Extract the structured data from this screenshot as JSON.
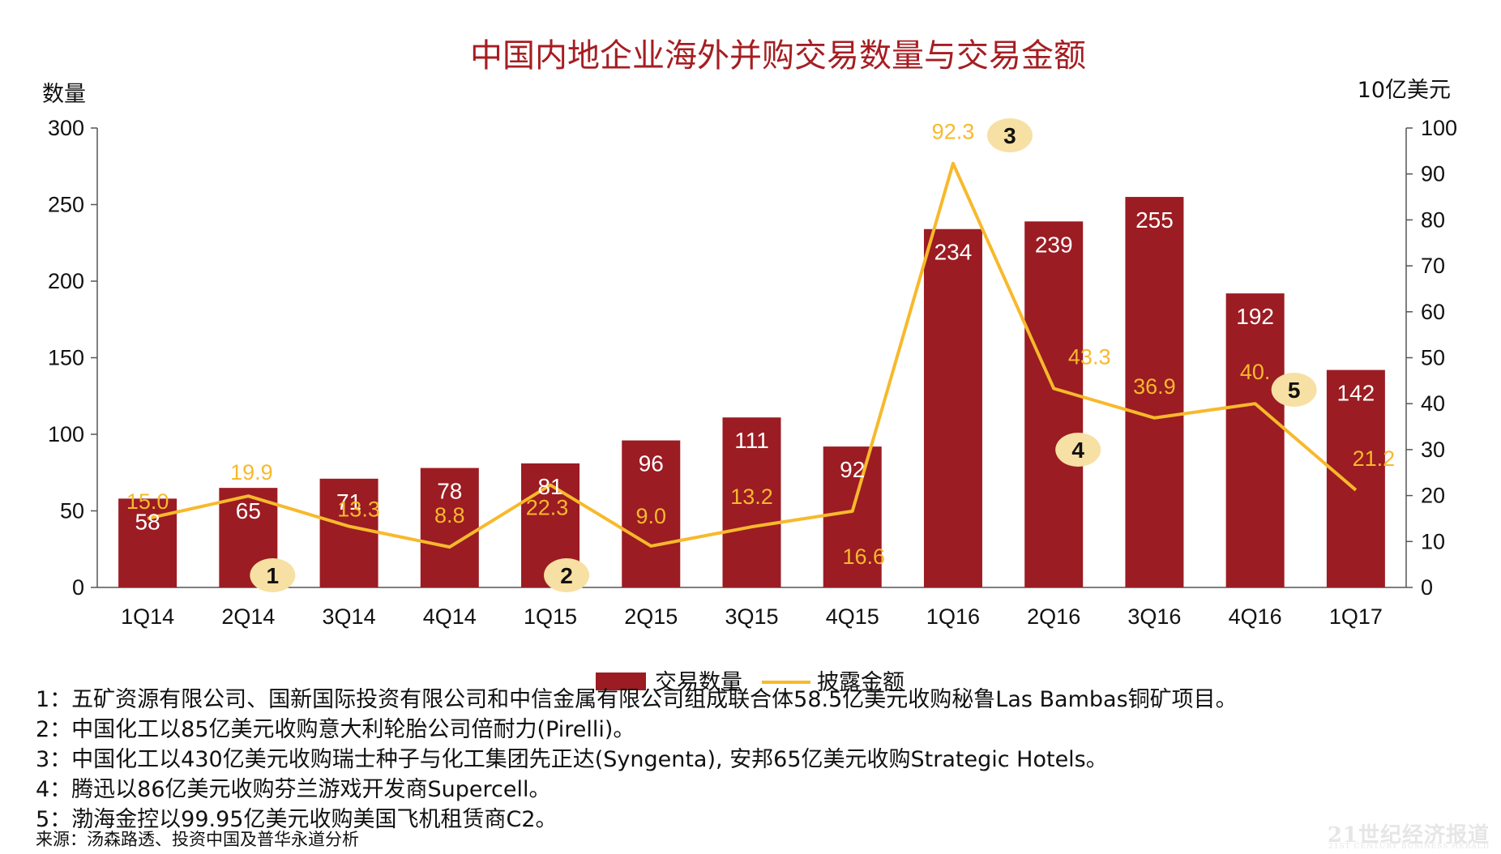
{
  "chart_data": {
    "type": "bar+line",
    "title": "中国内地企业海外并购交易数量与交易金额",
    "ylabel_left": "数量",
    "ylabel_right": "10亿美元",
    "categories": [
      "1Q14",
      "2Q14",
      "3Q14",
      "4Q14",
      "1Q15",
      "2Q15",
      "3Q15",
      "4Q15",
      "1Q16",
      "2Q16",
      "3Q16",
      "4Q16",
      "1Q17"
    ],
    "series": [
      {
        "name": "交易数量",
        "type": "bar",
        "axis": "left",
        "color": "#9b1c22",
        "values": [
          58,
          65,
          71,
          78,
          81,
          96,
          111,
          92,
          234,
          239,
          255,
          192,
          142
        ],
        "labels": [
          "58",
          "65",
          "71",
          "78",
          "81",
          "96",
          "111",
          "92",
          "234",
          "239",
          "255",
          "192",
          "142"
        ]
      },
      {
        "name": "披露金额",
        "type": "line",
        "axis": "right",
        "color": "#f7b92c",
        "values": [
          15.0,
          19.9,
          13.3,
          8.8,
          22.3,
          9.0,
          13.2,
          16.6,
          92.3,
          43.3,
          36.9,
          40.0,
          21.2
        ],
        "labels": [
          "15.0",
          "19.9",
          "13.3",
          "8.8",
          "22.3",
          "9.0",
          "13.2",
          "16.6",
          "92.3",
          "43.3",
          "36.9",
          "40.",
          "21.2"
        ]
      }
    ],
    "ylim_left": [
      0,
      300
    ],
    "ylim_right": [
      0,
      100
    ],
    "yticks_left": [
      "0",
      "50",
      "100",
      "150",
      "200",
      "250",
      "300"
    ],
    "yticks_right": [
      "0",
      "10",
      "20",
      "30",
      "40",
      "50",
      "60",
      "70",
      "80",
      "90",
      "100"
    ],
    "markers": [
      {
        "label": "1",
        "category": "2Q14"
      },
      {
        "label": "2",
        "category": "1Q15"
      },
      {
        "label": "3",
        "category": "1Q16"
      },
      {
        "label": "4",
        "category": "2Q16"
      },
      {
        "label": "5",
        "category": "4Q16"
      }
    ],
    "legend": [
      "交易数量",
      "披露金额"
    ],
    "legend_position": "bottom-center",
    "grid": false
  },
  "notes": [
    "1：五矿资源有限公司、国新国际投资有限公司和中信金属有限公司组成联合体58.5亿美元收购秘鲁Las Bambas铜矿项目。",
    "2：中国化工以85亿美元收购意大利轮胎公司倍耐力(Pirelli)。",
    "3：中国化工以430亿美元收购瑞士种子与化工集团先正达(Syngenta), 安邦65亿美元收购Strategic Hotels。",
    "4：腾迅以86亿美元收购芬兰游戏开发商Supercell。",
    "5：渤海金控以99.95亿美元收购美国飞机租赁商C2。"
  ],
  "source": "来源：汤森路透、投资中国及普华永道分析",
  "watermark": "21世纪经济报道",
  "watermark_sub": "21ST CENTURY BUSINESS HERALD",
  "colors": {
    "title": "#a51e22",
    "bar": "#9b1c22",
    "line": "#f7b92c",
    "line_label": "#f7b92c",
    "marker_fill": "#f7e0a3",
    "axis": "#555555"
  }
}
